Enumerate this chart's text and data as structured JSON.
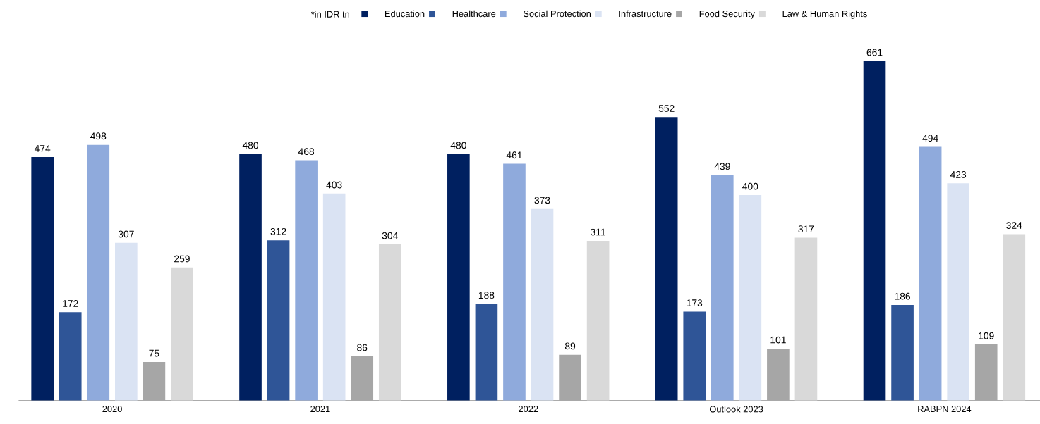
{
  "chart_data": {
    "type": "bar",
    "categories": [
      "2020",
      "2021",
      "2022",
      "Outlook 2023",
      "RABPN 2024"
    ],
    "series": [
      {
        "name": "Education",
        "color": "#002060",
        "values": [
          474,
          480,
          480,
          552,
          661
        ]
      },
      {
        "name": "Healthcare",
        "color": "#2f5597",
        "values": [
          172,
          312,
          188,
          173,
          186
        ]
      },
      {
        "name": "Social Protection",
        "color": "#8faadc",
        "values": [
          498,
          468,
          461,
          439,
          494
        ]
      },
      {
        "name": "Infrastructure",
        "color": "#dae3f3",
        "values": [
          307,
          403,
          373,
          400,
          423
        ]
      },
      {
        "name": "Food Security",
        "color": "#a6a6a6",
        "values": [
          75,
          86,
          89,
          101,
          109
        ]
      },
      {
        "name": "Law & Human Rights",
        "color": "#d9d9d9",
        "values": [
          259,
          304,
          311,
          317,
          324
        ]
      }
    ],
    "data_labels": true,
    "legend": "top",
    "annotations": [
      "*in IDR tn"
    ]
  }
}
